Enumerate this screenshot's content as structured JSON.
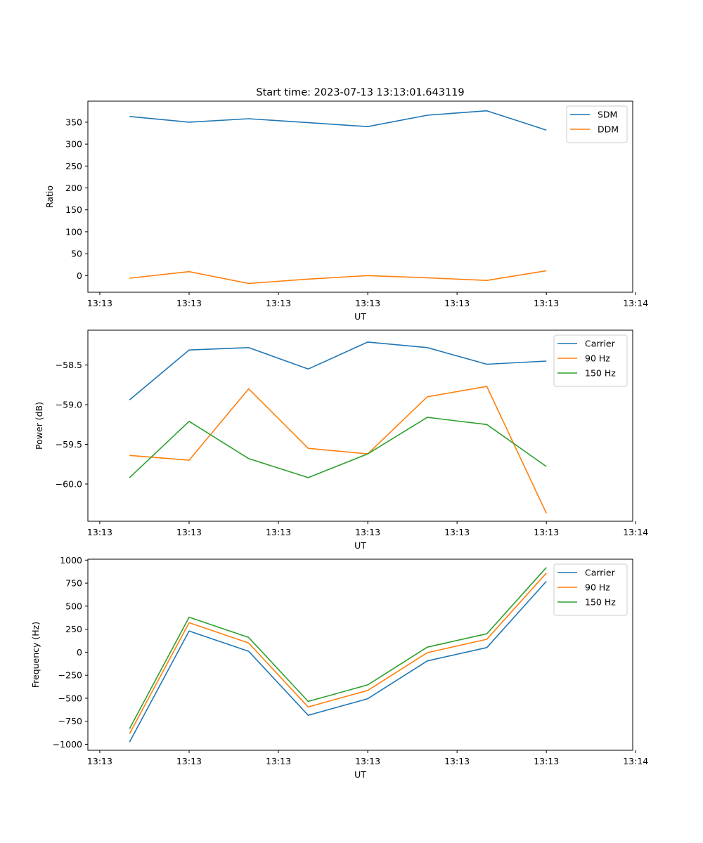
{
  "figure_title": "Start time: 2023-07-13 13:13:01.643119",
  "chart_data": [
    {
      "type": "line",
      "title": "Start time: 2023-07-13 13:13:01.643119",
      "xlabel": "UT",
      "ylabel": "Ratio",
      "x": [
        1,
        2,
        3,
        4,
        5,
        6,
        7,
        8
      ],
      "xlim": [
        0.3,
        9.45
      ],
      "x_ticks": [
        0.5,
        2,
        3.5,
        5,
        6.5,
        8,
        9.5
      ],
      "x_tick_labels": [
        "13:13",
        "13:13",
        "13:13",
        "13:13",
        "13:13",
        "13:13",
        "13:14"
      ],
      "ylim": [
        -38,
        398
      ],
      "y_ticks": [
        0,
        50,
        100,
        150,
        200,
        250,
        300,
        350
      ],
      "y_tick_labels": [
        "0",
        "50",
        "100",
        "150",
        "200",
        "250",
        "300",
        "350"
      ],
      "legend_position": "top-right",
      "series": [
        {
          "name": "SDM",
          "color": "#1f77b4",
          "values": [
            363,
            350,
            358,
            349,
            340,
            366,
            376,
            332
          ]
        },
        {
          "name": "DDM",
          "color": "#ff7f0e",
          "values": [
            -6,
            9,
            -18,
            -8,
            0,
            -5,
            -11,
            11
          ]
        }
      ]
    },
    {
      "type": "line",
      "title": "",
      "xlabel": "UT",
      "ylabel": "Power (dB)",
      "x": [
        1,
        2,
        3,
        4,
        5,
        6,
        7,
        8
      ],
      "xlim": [
        0.3,
        9.45
      ],
      "x_ticks": [
        0.5,
        2,
        3.5,
        5,
        6.5,
        8,
        9.5
      ],
      "x_tick_labels": [
        "13:13",
        "13:13",
        "13:13",
        "13:13",
        "13:13",
        "13:13",
        "13:14"
      ],
      "ylim": [
        -60.47,
        -58.06
      ],
      "y_ticks": [
        -60.0,
        -59.5,
        -59.0,
        -58.5
      ],
      "y_tick_labels": [
        "−60.0",
        "−59.5",
        "−59.0",
        "−58.5"
      ],
      "legend_position": "top-right",
      "series": [
        {
          "name": "Carrier",
          "color": "#1f77b4",
          "values": [
            -58.94,
            -58.31,
            -58.28,
            -58.55,
            -58.21,
            -58.28,
            -58.49,
            -58.45
          ]
        },
        {
          "name": "90 Hz",
          "color": "#ff7f0e",
          "values": [
            -59.64,
            -59.7,
            -58.8,
            -59.55,
            -59.62,
            -58.9,
            -58.77,
            -60.37
          ]
        },
        {
          "name": "150 Hz",
          "color": "#2ca02c",
          "values": [
            -59.92,
            -59.21,
            -59.68,
            -59.92,
            -59.62,
            -59.16,
            -59.25,
            -59.78
          ]
        }
      ]
    },
    {
      "type": "line",
      "title": "",
      "xlabel": "UT",
      "ylabel": "Frequency (Hz)",
      "x": [
        1,
        2,
        3,
        4,
        5,
        6,
        7,
        8
      ],
      "xlim": [
        0.3,
        9.45
      ],
      "x_ticks": [
        0.5,
        2,
        3.5,
        5,
        6.5,
        8,
        9.5
      ],
      "x_tick_labels": [
        "13:13",
        "13:13",
        "13:13",
        "13:13",
        "13:13",
        "13:13",
        "13:14"
      ],
      "ylim": [
        -1065,
        1010
      ],
      "y_ticks": [
        -1000,
        -750,
        -500,
        -250,
        0,
        250,
        500,
        750,
        1000
      ],
      "y_tick_labels": [
        "−1000",
        "−750",
        "−500",
        "−250",
        "0",
        "250",
        "500",
        "750",
        "1000"
      ],
      "legend_position": "top-right",
      "series": [
        {
          "name": "Carrier",
          "color": "#1f77b4",
          "values": [
            -975,
            230,
            10,
            -685,
            -505,
            -95,
            50,
            770
          ]
        },
        {
          "name": "90 Hz",
          "color": "#ff7f0e",
          "values": [
            -885,
            320,
            100,
            -595,
            -415,
            -5,
            140,
            860
          ]
        },
        {
          "name": "150 Hz",
          "color": "#2ca02c",
          "values": [
            -830,
            380,
            160,
            -535,
            -355,
            55,
            200,
            920
          ]
        }
      ]
    }
  ]
}
